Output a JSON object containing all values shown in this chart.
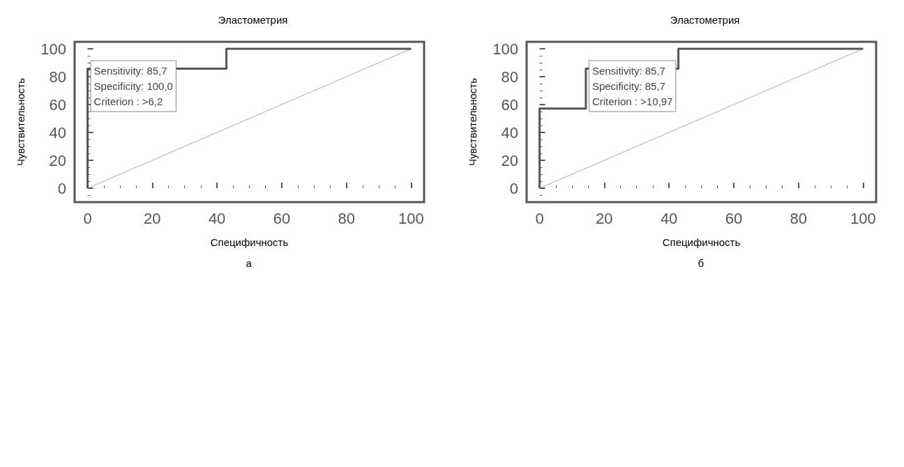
{
  "chart_data": [
    {
      "type": "line",
      "title": "Эластометрия",
      "xlabel": "Специфичность",
      "ylabel": "Чувствительность",
      "xlim": [
        -4,
        104
      ],
      "ylim": [
        -10,
        105
      ],
      "xticks": [
        0,
        20,
        40,
        60,
        80,
        100
      ],
      "yticks": [
        0,
        20,
        40,
        60,
        80,
        100
      ],
      "grid": false,
      "marker": "none",
      "line_style": "solid",
      "series": [
        {
          "x": [
            0,
            0,
            42.9,
            42.9,
            100
          ],
          "values": [
            0,
            85.7,
            85.7,
            100,
            100
          ],
          "color": "#555555"
        },
        {
          "x": [
            0,
            100
          ],
          "values": [
            0,
            100
          ],
          "color": "#aaaaaa"
        }
      ],
      "annotations": [
        "Sensitivity: 85,7",
        "Specificity: 100,0",
        "Criterion : >6,2",
        "а"
      ]
    },
    {
      "type": "line",
      "title": "Эластометрия",
      "xlabel": "Специфичность",
      "ylabel": "Чувствительность",
      "xlim": [
        -4,
        104
      ],
      "ylim": [
        -10,
        105
      ],
      "xticks": [
        0,
        20,
        40,
        60,
        80,
        100
      ],
      "yticks": [
        0,
        20,
        40,
        60,
        80,
        100
      ],
      "grid": false,
      "marker": "none",
      "line_style": "solid",
      "series": [
        {
          "x": [
            0,
            0,
            14.3,
            14.3,
            42.9,
            42.9,
            100
          ],
          "values": [
            0,
            57.1,
            57.1,
            85.7,
            85.7,
            100,
            100
          ],
          "color": "#555555"
        },
        {
          "x": [
            0,
            100
          ],
          "values": [
            0,
            100
          ],
          "color": "#aaaaaa"
        }
      ],
      "annotations": [
        "Sensitivity: 85,7",
        "Specificity: 85,7",
        "Criterion : >10,97",
        "б"
      ]
    }
  ]
}
